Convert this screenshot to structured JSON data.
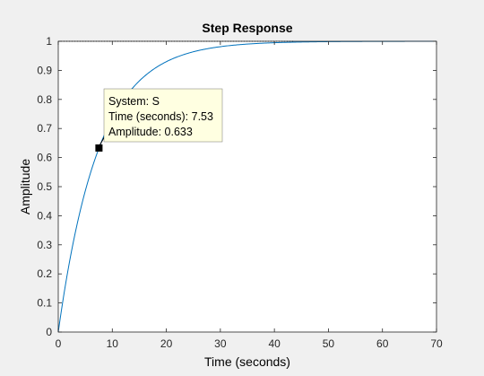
{
  "chart_data": {
    "type": "line",
    "title": "Step Response",
    "xlabel": "Time (seconds)",
    "ylabel": "Amplitude",
    "xlim": [
      0,
      70
    ],
    "ylim": [
      0,
      1
    ],
    "xticks": [
      "0",
      "10",
      "20",
      "30",
      "40",
      "50",
      "60",
      "70"
    ],
    "yticks": [
      "0",
      "0.1",
      "0.2",
      "0.3",
      "0.4",
      "0.5",
      "0.6",
      "0.7",
      "0.8",
      "0.9",
      "1"
    ],
    "grid": false,
    "series": [
      {
        "model": "first-order step response",
        "time_constant": 7.53,
        "final_value": 1,
        "x": [
          0,
          2,
          4,
          6,
          7.53,
          10,
          12,
          14,
          16,
          18,
          20,
          25,
          30,
          35,
          40,
          43.5
        ],
        "y": [
          0,
          0.233,
          0.412,
          0.549,
          0.633,
          0.735,
          0.797,
          0.844,
          0.881,
          0.908,
          0.93,
          0.964,
          0.981,
          0.99,
          0.995,
          0.997
        ],
        "color": "#0072bd"
      }
    ],
    "steady_state_line": {
      "y": 1,
      "x_end": 43.5,
      "style": "dotted"
    },
    "datatip": {
      "lines": [
        "System: S",
        "Time (seconds): 7.53",
        "Amplitude: 0.633"
      ],
      "x": 7.53,
      "y": 0.633
    }
  },
  "colors": {
    "background": "#f0f0f0",
    "axes_background": "#ffffff",
    "axis": "#262626",
    "line": "#0072bd",
    "datatip_background": "#ffffe1"
  }
}
